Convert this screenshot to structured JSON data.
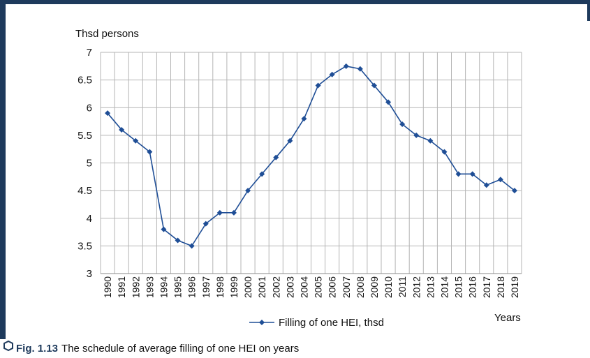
{
  "chart_data": {
    "type": "line",
    "y_axis_label": "Thsd persons",
    "x_axis_label": "Years",
    "categories": [
      "1990",
      "1991",
      "1992",
      "1993",
      "1994",
      "1995",
      "1996",
      "1997",
      "1998",
      "1999",
      "2000",
      "2001",
      "2002",
      "2003",
      "2004",
      "2005",
      "2006",
      "2007",
      "2008",
      "2009",
      "2010",
      "2011",
      "2012",
      "2013",
      "2014",
      "2015",
      "2016",
      "2017",
      "2018",
      "2019"
    ],
    "series": [
      {
        "name": "Filling of one HEI, thsd",
        "color": "#1f4e96",
        "values": [
          5.9,
          5.6,
          5.4,
          5.2,
          3.8,
          3.6,
          3.5,
          3.9,
          4.1,
          4.1,
          4.5,
          4.8,
          5.1,
          5.4,
          5.8,
          6.4,
          6.6,
          6.75,
          6.7,
          6.4,
          6.1,
          5.7,
          5.5,
          5.4,
          5.2,
          4.8,
          4.8,
          4.6,
          4.7,
          4.5
        ]
      }
    ],
    "ylim": [
      3,
      7
    ],
    "yticks": [
      3,
      3.5,
      4,
      4.5,
      5,
      5.5,
      6,
      6.5,
      7
    ],
    "grid": true,
    "legend": "bottom"
  },
  "caption": {
    "label": "Fig. 1.13",
    "text": "The schedule of average filling of one HEI on years"
  }
}
